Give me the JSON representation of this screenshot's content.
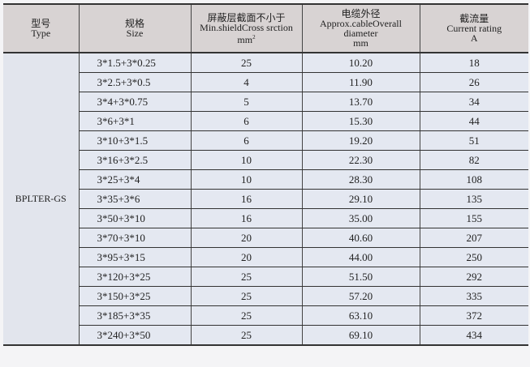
{
  "header": {
    "type": {
      "zh": "型号",
      "en": "Type"
    },
    "size": {
      "zh": "规格",
      "en": "Size"
    },
    "shield": {
      "zh": "屏蔽层截面不小于",
      "en": "Min.shieldCross srction",
      "unit": "mm",
      "unit_sup": "2"
    },
    "diameter": {
      "zh": "电缆外径",
      "en1": "Approx.cableOverall",
      "en2": "diameter",
      "unit": "mm"
    },
    "current": {
      "zh": "截流量",
      "en": "Current rating",
      "unit": "A"
    }
  },
  "type_value": "BPLTER-GS",
  "rows": [
    {
      "size": "3*1.5+3*0.25",
      "shield": "25",
      "diameter": "10.20",
      "current": "18"
    },
    {
      "size": "3*2.5+3*0.5",
      "shield": "4",
      "diameter": "11.90",
      "current": "26"
    },
    {
      "size": "3*4+3*0.75",
      "shield": "5",
      "diameter": "13.70",
      "current": "34"
    },
    {
      "size": "3*6+3*1",
      "shield": "6",
      "diameter": "15.30",
      "current": "44"
    },
    {
      "size": "3*10+3*1.5",
      "shield": "6",
      "diameter": "19.20",
      "current": "51"
    },
    {
      "size": "3*16+3*2.5",
      "shield": "10",
      "diameter": "22.30",
      "current": "82"
    },
    {
      "size": "3*25+3*4",
      "shield": "10",
      "diameter": "28.30",
      "current": "108"
    },
    {
      "size": "3*35+3*6",
      "shield": "16",
      "diameter": "29.10",
      "current": "135"
    },
    {
      "size": "3*50+3*10",
      "shield": "16",
      "diameter": "35.00",
      "current": "155"
    },
    {
      "size": "3*70+3*10",
      "shield": "20",
      "diameter": "40.60",
      "current": "207"
    },
    {
      "size": "3*95+3*15",
      "shield": "20",
      "diameter": "44.00",
      "current": "250"
    },
    {
      "size": "3*120+3*25",
      "shield": "25",
      "diameter": "51.50",
      "current": "292"
    },
    {
      "size": "3*150+3*25",
      "shield": "25",
      "diameter": "57.20",
      "current": "335"
    },
    {
      "size": "3*185+3*35",
      "shield": "25",
      "diameter": "63.10",
      "current": "372"
    },
    {
      "size": "3*240+3*50",
      "shield": "25",
      "diameter": "69.10",
      "current": "434"
    }
  ]
}
